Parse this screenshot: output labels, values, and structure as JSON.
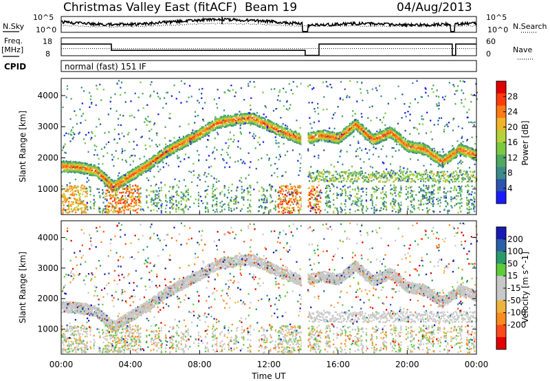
{
  "header": {
    "station": "Christmas Valley East (fitACF)",
    "beam": "Beam 19",
    "date": "04/Aug/2013"
  },
  "noise_panel": {
    "left_label": "N.Sky",
    "right_label": "N.Search",
    "left_ticks": [
      "10^5",
      "10^0"
    ],
    "right_ticks": [
      "10^5",
      "10^0"
    ]
  },
  "freq_panel": {
    "left_label_line1": "Freq.",
    "left_label_line2": "[MHz]",
    "right_label": "Nave",
    "left_ticks": [
      "18",
      "8"
    ],
    "right_ticks": [
      "60",
      "0"
    ]
  },
  "cpid": {
    "label": "CPID",
    "mode": "normal (fast) 151 IF"
  },
  "colors": {
    "power": [
      "#1a1aff",
      "#2b55b0",
      "#3c8a8a",
      "#4fa860",
      "#7cc840",
      "#b4d23a",
      "#f0b428",
      "#ff7a14",
      "#ff3c0a",
      "#e00000"
    ],
    "velocity": [
      "#e00000",
      "#ff4a1a",
      "#ff8a1e",
      "#f0b33c",
      "#c8c8c8",
      "#c8c8c8",
      "#5fcb3c",
      "#2a9a6a",
      "#2a5faa",
      "#1a1ab4"
    ]
  },
  "chart_data": [
    {
      "type": "heatmap",
      "panel": "power",
      "ylabel": "Slant Range [km]",
      "ylim": [
        180,
        4550
      ],
      "yticks": [
        "1000",
        "2000",
        "3000",
        "4000"
      ],
      "xlim": [
        0,
        24
      ],
      "colorbar_label": "Power [dB]",
      "colorbar_ticks": [
        "4",
        "8",
        "12",
        "16",
        "20",
        "24",
        "28"
      ],
      "clim": [
        0,
        30
      ],
      "data_gap_hour": 14.1,
      "main_echo_trace": [
        {
          "x": 0,
          "y": 1750
        },
        {
          "x": 1,
          "y": 1720
        },
        {
          "x": 2,
          "y": 1600
        },
        {
          "x": 3,
          "y": 1100
        },
        {
          "x": 4,
          "y": 1450
        },
        {
          "x": 5,
          "y": 1800
        },
        {
          "x": 6,
          "y": 2200
        },
        {
          "x": 7,
          "y": 2500
        },
        {
          "x": 8,
          "y": 2800
        },
        {
          "x": 9,
          "y": 3150
        },
        {
          "x": 10,
          "y": 3250
        },
        {
          "x": 11,
          "y": 3300
        },
        {
          "x": 12,
          "y": 3050
        },
        {
          "x": 13,
          "y": 2800
        },
        {
          "x": 14,
          "y": 2600
        },
        {
          "x": 15,
          "y": 2750
        },
        {
          "x": 16,
          "y": 2650
        },
        {
          "x": 17,
          "y": 3100
        },
        {
          "x": 18,
          "y": 2600
        },
        {
          "x": 19,
          "y": 2850
        },
        {
          "x": 20,
          "y": 2400
        },
        {
          "x": 21,
          "y": 2300
        },
        {
          "x": 22,
          "y": 1900
        },
        {
          "x": 23,
          "y": 2300
        },
        {
          "x": 24,
          "y": 2100
        }
      ]
    },
    {
      "type": "heatmap",
      "panel": "velocity",
      "ylabel": "Slant Range [km]",
      "ylim": [
        180,
        4550
      ],
      "yticks": [
        "1000",
        "2000",
        "3000",
        "4000"
      ],
      "xlim": [
        0,
        24
      ],
      "xlabel": "Time UT",
      "xticks": [
        "00:00",
        "04:00",
        "08:00",
        "12:00",
        "16:00",
        "20:00",
        "00:00"
      ],
      "colorbar_label": "Velocity [m s^-1]",
      "colorbar_ticks": [
        "200",
        "100",
        "50",
        "15",
        "-15",
        "-50",
        "-100",
        "-200"
      ],
      "clim": [
        -250,
        250
      ]
    }
  ]
}
